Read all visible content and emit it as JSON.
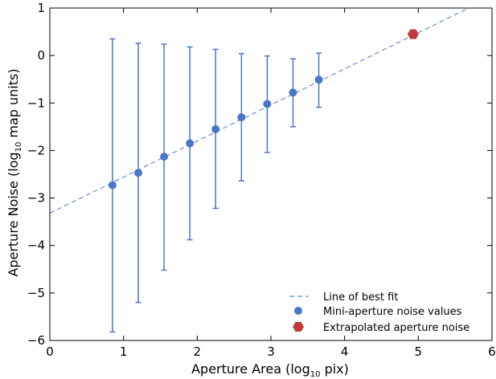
{
  "chart_data": {
    "type": "scatter",
    "xlabel": "Aperture Area (log",
    "xlabel_sub": "10",
    "xlabel_end": " pix)",
    "ylabel": "Aperture Noise (log",
    "ylabel_sub": "10",
    "ylabel_end": " map units)",
    "xlim": [
      0,
      6
    ],
    "ylim": [
      -6,
      1
    ],
    "x_ticks": [
      "0",
      "1",
      "2",
      "3",
      "4",
      "5",
      "6"
    ],
    "y_ticks": [
      "−6",
      "−5",
      "−4",
      "−3",
      "−2",
      "−1",
      "0",
      "1"
    ],
    "x_tick_values": [
      0,
      1,
      2,
      3,
      4,
      5,
      6
    ],
    "y_tick_values": [
      -6,
      -5,
      -4,
      -3,
      -2,
      -1,
      0,
      1
    ],
    "grid": false,
    "legend_position": "bottom-right",
    "fit_line": {
      "name": "Line of best fit",
      "slope": 0.76,
      "intercept": -3.32,
      "color": "#4a77c9"
    },
    "series": [
      {
        "name": "Mini-aperture noise values",
        "color": "#4a77c9",
        "x": [
          0.85,
          1.2,
          1.55,
          1.9,
          2.25,
          2.6,
          2.95,
          3.3,
          3.65
        ],
        "y": [
          -2.73,
          -2.47,
          -2.13,
          -1.85,
          -1.55,
          -1.3,
          -1.02,
          -0.78,
          -0.51
        ],
        "y_err_lower": [
          -5.82,
          -5.2,
          -4.52,
          -3.88,
          -3.22,
          -2.64,
          -2.04,
          -1.5,
          -1.09
        ],
        "y_err_upper": [
          0.35,
          0.26,
          0.24,
          0.18,
          0.13,
          0.04,
          -0.01,
          -0.07,
          0.05
        ]
      },
      {
        "name": "Extrapolated aperture noise",
        "color": "#c0393b",
        "x": [
          4.93
        ],
        "y": [
          0.45
        ]
      }
    ]
  }
}
